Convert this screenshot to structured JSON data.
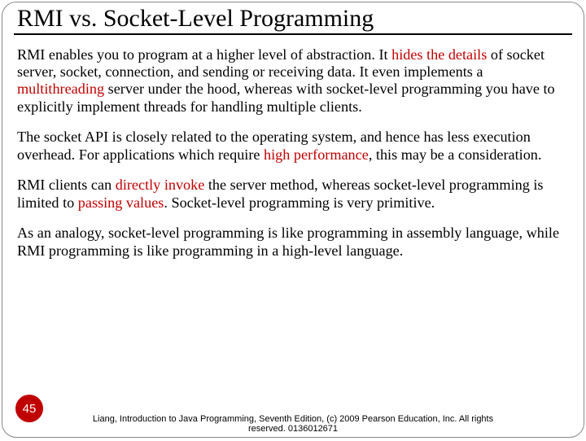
{
  "slide": {
    "title": "RMI vs. Socket-Level Programming",
    "page_number": "45",
    "footer": "Liang, Introduction to Java Programming, Seventh Edition, (c) 2009 Pearson Education, Inc. All rights reserved. 0136012671",
    "colors": {
      "highlight": "#c00000",
      "badge_bg": "#c00000",
      "badge_text": "#ffffff",
      "text": "#000000",
      "background": "#ffffff"
    },
    "p1": {
      "t1": "RMI enables you to program at a higher level of abstraction. It ",
      "h1": "hides the details",
      "t2": " of socket server, socket, connection, and sending or receiving data. It even implements a ",
      "h2": "multithreading",
      "t3": " server under the hood, whereas with socket-level programming you have to explicitly implement threads for handling multiple clients."
    },
    "p2": {
      "t1": "The socket API is closely related to the operating system, and hence has less execution overhead.  For applications which require ",
      "h1": "high performance",
      "t2": ", this may be a consideration."
    },
    "p3": {
      "t1": "RMI clients can ",
      "h1": "directly invoke",
      "t2": " the server method, whereas socket-level programming is limited to ",
      "h2": "passing values",
      "t3": ". Socket-level programming is very primitive."
    },
    "p4": {
      "t1": "As an analogy, socket-level programming is like programming in assembly language, while RMI programming is like programming in a high-level language."
    }
  }
}
